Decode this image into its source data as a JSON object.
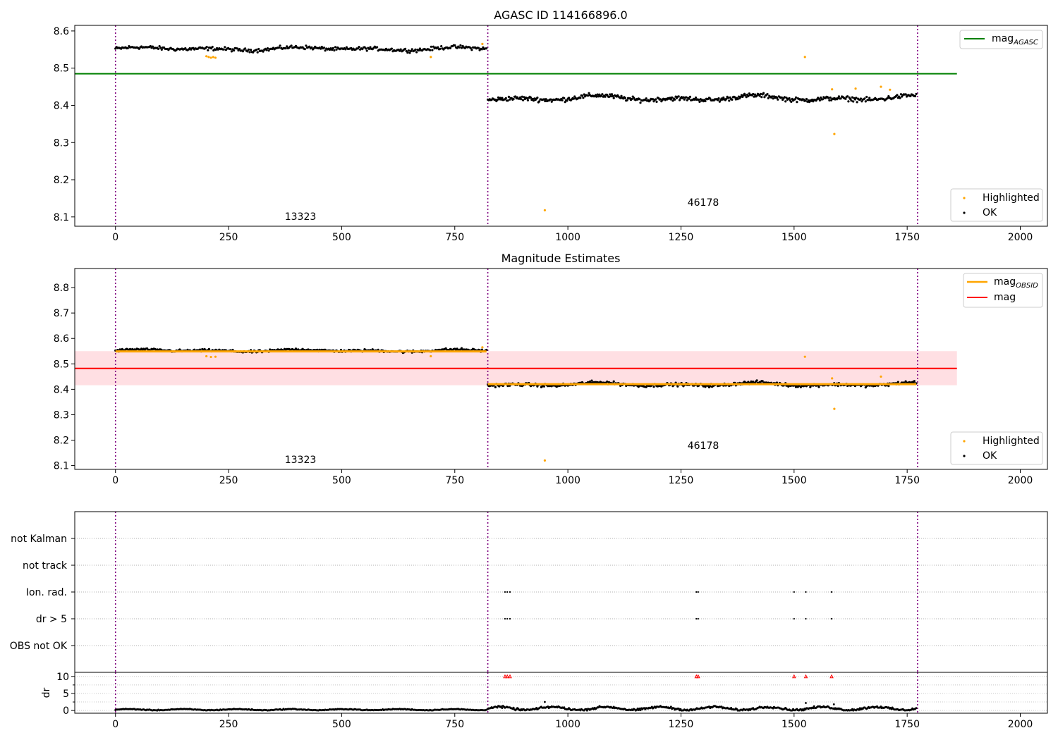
{
  "colors": {
    "ok": "#000000",
    "highlighted": "#ffa500",
    "mag_agasc": "#008000",
    "mag_obsid": "#ffa500",
    "mag": "#ff0000",
    "mag_band": "#ffdfe3",
    "boundary": "#800080",
    "flag_dr": "#ff0000"
  },
  "chart_data": [
    {
      "id": "agasc",
      "type": "scatter",
      "title": "AGASC ID 114166896.0",
      "xlim": [
        -90,
        2060
      ],
      "ylim": [
        8.075,
        8.615
      ],
      "xticks": [
        0,
        250,
        500,
        750,
        1000,
        1250,
        1500,
        1750,
        2000
      ],
      "yticks": [
        8.1,
        8.2,
        8.3,
        8.4,
        8.5,
        8.6
      ],
      "grid": false,
      "legend_location": "top-right",
      "legend_lines": [
        {
          "label_main": "mag",
          "label_sub": "AGASC",
          "color": "#008000"
        }
      ],
      "legend_points": [
        {
          "label": "Highlighted",
          "color": "#ffa500"
        },
        {
          "label": "OK",
          "color": "#000000"
        }
      ],
      "obsid_labels": [
        {
          "text": "13323",
          "x": 410,
          "y": 8.095
        },
        {
          "text": "46178",
          "x": 1295,
          "y": 8.132
        }
      ],
      "boundaries": [
        0,
        823,
        1773
      ],
      "hlines": [
        {
          "y": 8.485,
          "x0": -90,
          "x1": 1860,
          "color": "#008000"
        }
      ],
      "segments": [
        {
          "x0": 0,
          "x1": 820,
          "mean": 8.552,
          "amp": 0.005,
          "noise": 0.004,
          "n": 330,
          "color": "#000000"
        },
        {
          "x0": 823,
          "x1": 1770,
          "mean": 8.419,
          "amp": 0.008,
          "noise": 0.005,
          "n": 450,
          "color": "#000000"
        }
      ],
      "highlighted_points": [
        [
          201,
          8.532
        ],
        [
          206,
          8.53
        ],
        [
          211,
          8.528
        ],
        [
          216,
          8.53
        ],
        [
          221,
          8.528
        ],
        [
          697,
          8.53
        ],
        [
          811,
          8.565
        ],
        [
          949,
          8.118
        ],
        [
          1524,
          8.53
        ],
        [
          1584,
          8.443
        ],
        [
          1589,
          8.323
        ],
        [
          1636,
          8.445
        ],
        [
          1692,
          8.45
        ],
        [
          1712,
          8.442
        ]
      ]
    },
    {
      "id": "estimates",
      "type": "scatter",
      "title": "Magnitude Estimates",
      "xlim": [
        -90,
        2060
      ],
      "ylim": [
        8.085,
        8.875
      ],
      "xticks": [
        0,
        250,
        500,
        750,
        1000,
        1250,
        1500,
        1750,
        2000
      ],
      "yticks": [
        8.1,
        8.2,
        8.3,
        8.4,
        8.5,
        8.6,
        8.7,
        8.8
      ],
      "grid": false,
      "legend_location": "top-right",
      "legend_lines": [
        {
          "label_main": "mag",
          "label_sub": "OBSID",
          "color": "#ffa500"
        },
        {
          "label_main": "mag",
          "label_sub": "",
          "color": "#ff0000"
        }
      ],
      "legend_points": [
        {
          "label": "Highlighted",
          "color": "#ffa500"
        },
        {
          "label": "OK",
          "color": "#000000"
        }
      ],
      "obsid_labels": [
        {
          "text": "13323",
          "x": 410,
          "y": 8.11
        },
        {
          "text": "46178",
          "x": 1295,
          "y": 8.168
        }
      ],
      "boundaries": [
        0,
        823,
        1773
      ],
      "band": {
        "y0": 8.416,
        "y1": 8.55,
        "x0": -90,
        "x1": 1860
      },
      "hlines": [
        {
          "y": 8.482,
          "x0": -90,
          "x1": 1860,
          "color": "#ff0000"
        }
      ],
      "mean_lines": [
        {
          "x0": 0,
          "x1": 820,
          "y": 8.549
        },
        {
          "x0": 823,
          "x1": 1770,
          "y": 8.42
        }
      ],
      "segments": [
        {
          "x0": 0,
          "x1": 820,
          "mean": 8.552,
          "amp": 0.005,
          "noise": 0.004,
          "n": 330,
          "color": "#000000"
        },
        {
          "x0": 823,
          "x1": 1770,
          "mean": 8.419,
          "amp": 0.008,
          "noise": 0.005,
          "n": 450,
          "color": "#000000"
        }
      ],
      "highlighted_points": [
        [
          201,
          8.53
        ],
        [
          211,
          8.527
        ],
        [
          221,
          8.528
        ],
        [
          697,
          8.53
        ],
        [
          811,
          8.565
        ],
        [
          949,
          8.12
        ],
        [
          1524,
          8.528
        ],
        [
          1584,
          8.443
        ],
        [
          1589,
          8.323
        ],
        [
          1692,
          8.45
        ]
      ]
    },
    {
      "id": "flags",
      "type": "scatter",
      "title": "",
      "xlim": [
        -90,
        2060
      ],
      "categories": [
        "not Kalman",
        "not track",
        "Ion. rad.",
        "dr > 5",
        "OBS not OK"
      ],
      "grid": true,
      "boundaries": [
        0,
        823,
        1773
      ],
      "flag_x": [
        861,
        866,
        872,
        1284,
        1288,
        1500,
        1526,
        1583
      ],
      "flags": {
        "Ion. rad.": [
          861,
          866,
          872,
          1284,
          1288,
          1500,
          1526,
          1583
        ],
        "dr > 5": [
          861,
          866,
          872,
          1284,
          1288,
          1500,
          1526,
          1583
        ]
      }
    },
    {
      "id": "dr",
      "type": "scatter",
      "ylabel": "dr",
      "xlim": [
        -90,
        2060
      ],
      "ylim": [
        -0.8,
        11.2
      ],
      "xticks": [
        0,
        250,
        500,
        750,
        1000,
        1250,
        1500,
        1750,
        2000
      ],
      "yticks": [
        0,
        5,
        10
      ],
      "boundaries": [
        0,
        823,
        1773
      ],
      "clipped_at": 10,
      "clipped_x": [
        861,
        866,
        872,
        1284,
        1288,
        1500,
        1526,
        1583
      ],
      "segments": [
        {
          "x0": 0,
          "x1": 820,
          "mean": 0.25,
          "amp": 0.15,
          "noise": 0.1,
          "n": 330
        },
        {
          "x0": 823,
          "x1": 1770,
          "mean": 0.6,
          "amp": 0.45,
          "noise": 0.25,
          "n": 450
        }
      ],
      "outliers": [
        [
          949,
          2.5
        ],
        [
          1526,
          2.2
        ],
        [
          1588,
          1.8
        ]
      ]
    }
  ]
}
